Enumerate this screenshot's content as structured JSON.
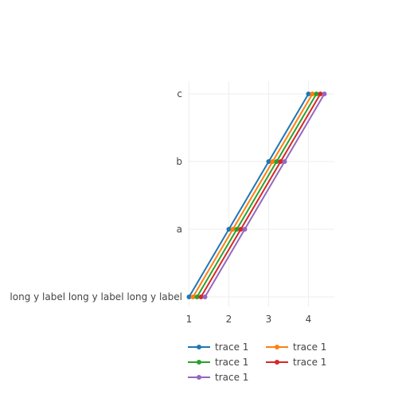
{
  "chart_data": {
    "type": "line",
    "title": "",
    "xlabel": "",
    "ylabel": "",
    "xlim": [
      0.97,
      4.65
    ],
    "x_ticks": [
      1,
      2,
      3,
      4
    ],
    "categories": [
      "long y label long y label long y label",
      "a",
      "b",
      "c"
    ],
    "grid": true,
    "legend_position": "bottom",
    "series": [
      {
        "name": "trace 1",
        "color": "#1f77b4",
        "x": [
          1.0,
          2.0,
          3.0,
          4.0
        ],
        "y": [
          "long y label long y label long y label",
          "a",
          "b",
          "c"
        ]
      },
      {
        "name": "trace 1",
        "color": "#ff7f0e",
        "x": [
          1.1,
          2.1,
          3.1,
          4.1
        ],
        "y": [
          "long y label long y label long y label",
          "a",
          "b",
          "c"
        ]
      },
      {
        "name": "trace 1",
        "color": "#2ca02c",
        "x": [
          1.2,
          2.2,
          3.2,
          4.2
        ],
        "y": [
          "long y label long y label long y label",
          "a",
          "b",
          "c"
        ]
      },
      {
        "name": "trace 1",
        "color": "#d62728",
        "x": [
          1.3,
          2.3,
          3.3,
          4.3
        ],
        "y": [
          "long y label long y label long y label",
          "a",
          "b",
          "c"
        ]
      },
      {
        "name": "trace 1",
        "color": "#9467bd",
        "x": [
          1.4,
          2.4,
          3.4,
          4.4
        ],
        "y": [
          "long y label long y label long y label",
          "a",
          "b",
          "c"
        ]
      }
    ]
  }
}
